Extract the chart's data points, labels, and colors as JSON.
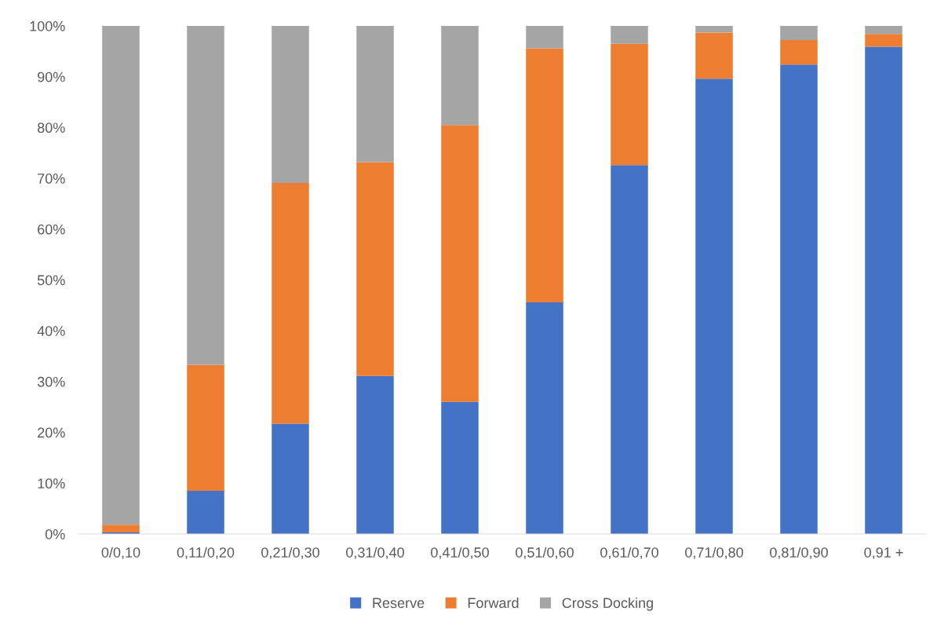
{
  "chart_data": {
    "type": "bar",
    "stacked": true,
    "categories": [
      "0/0,10",
      "0,11/0,20",
      "0,21/0,30",
      "0,31/0,40",
      "0,41/0,50",
      "0,51/0,60",
      "0,61/0,70",
      "0,71/0,80",
      "0,81/0,90",
      "0,91 +"
    ],
    "series": [
      {
        "name": "Reserve",
        "color": "#4472c4",
        "values": [
          0.3,
          8.5,
          21.7,
          31.1,
          26.0,
          45.6,
          72.6,
          89.6,
          92.4,
          95.9
        ]
      },
      {
        "name": "Forward",
        "color": "#ed7d31",
        "values": [
          1.5,
          24.8,
          47.4,
          42.1,
          54.5,
          50.0,
          23.9,
          9.1,
          4.8,
          2.5
        ]
      },
      {
        "name": "Cross Docking",
        "color": "#a5a5a5",
        "values": [
          98.2,
          66.7,
          30.9,
          26.8,
          19.5,
          4.4,
          3.5,
          1.3,
          2.8,
          1.6
        ]
      }
    ],
    "ylim": [
      0,
      100
    ],
    "yticks": [
      {
        "value": 0,
        "label": "0%"
      },
      {
        "value": 10,
        "label": "10%"
      },
      {
        "value": 20,
        "label": "20%"
      },
      {
        "value": 30,
        "label": "30%"
      },
      {
        "value": 40,
        "label": "40%"
      },
      {
        "value": 50,
        "label": "50%"
      },
      {
        "value": 60,
        "label": "60%"
      },
      {
        "value": 70,
        "label": "70%"
      },
      {
        "value": 80,
        "label": "80%"
      },
      {
        "value": 90,
        "label": "90%"
      },
      {
        "value": 100,
        "label": "100%"
      }
    ],
    "grid": false,
    "legend": "bottom"
  }
}
